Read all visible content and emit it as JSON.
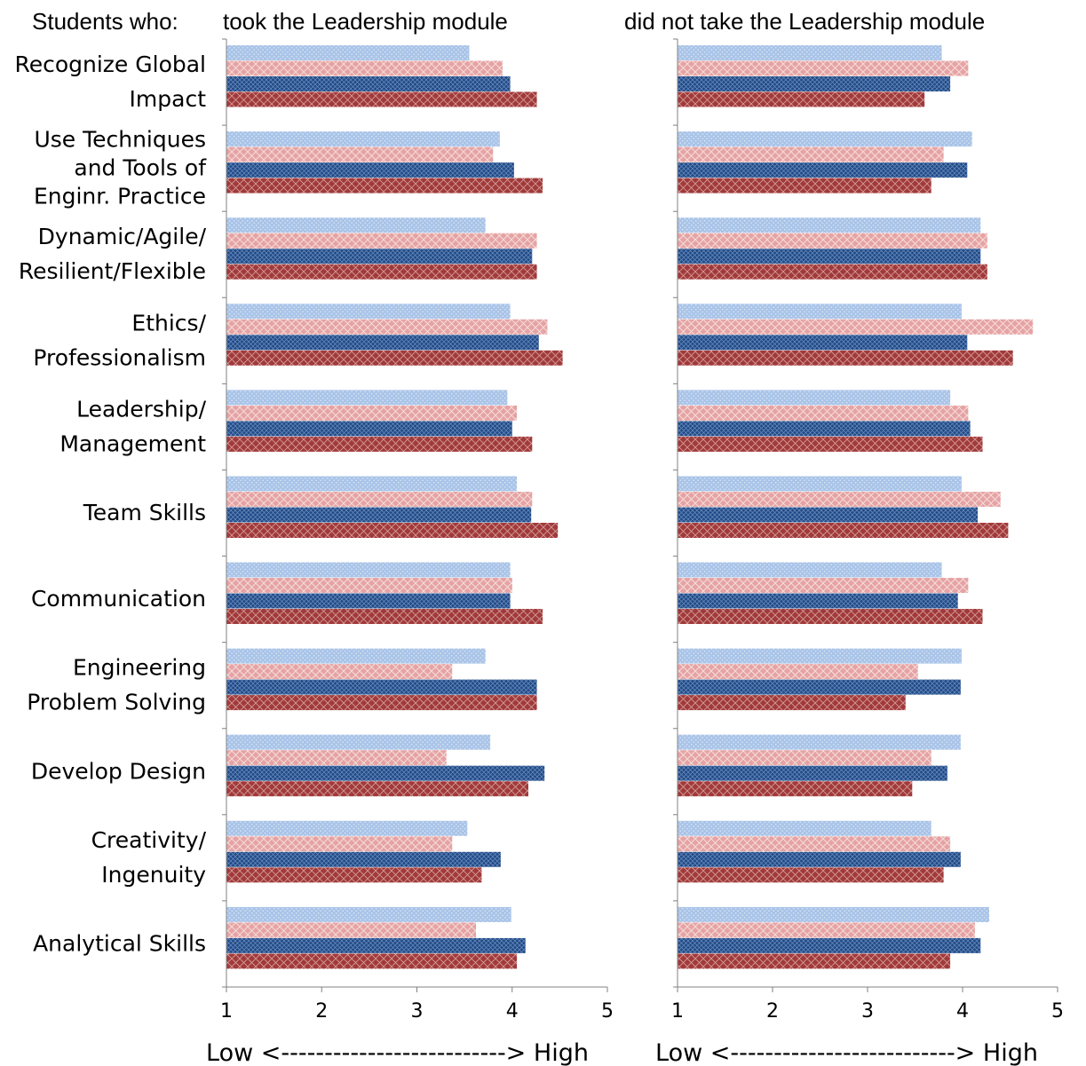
{
  "header": {
    "students_label": "Students who:",
    "left_title": "took the Leadership module",
    "right_title": "did not take the Leadership module"
  },
  "scale_label": "Low <--------------------------> High",
  "colors": {
    "light_blue": "#a9c4e8",
    "light_red": "#e6a3a3",
    "dark_blue": "#1f4a87",
    "dark_red": "#a13a3a",
    "axis": "#808080"
  },
  "chart_data": [
    {
      "type": "bar",
      "orientation": "horizontal",
      "title": "took the Leadership module",
      "categories": [
        [
          "Recognize Global",
          "Impact"
        ],
        [
          "Use Techniques",
          "and Tools of",
          "Enginr. Practice"
        ],
        [
          "Dynamic/Agile/",
          "Resilient/Flexible"
        ],
        [
          "Ethics/",
          "Professionalism"
        ],
        [
          "Leadership/",
          "Management"
        ],
        [
          "Team Skills"
        ],
        [
          "Communication"
        ],
        [
          "Engineering",
          "Problem Solving"
        ],
        [
          "Develop Design"
        ],
        [
          "Creativity/",
          "Ingenuity"
        ],
        [
          "Analytical Skills"
        ]
      ],
      "series": [
        {
          "color": "#a9c4e8",
          "values": [
            3.55,
            3.87,
            3.72,
            3.98,
            3.95,
            4.05,
            3.98,
            3.72,
            3.77,
            3.53,
            3.99
          ]
        },
        {
          "color": "#e6a3a3",
          "values": [
            3.9,
            3.8,
            4.26,
            4.37,
            4.05,
            4.21,
            4.0,
            3.37,
            3.31,
            3.37,
            3.62
          ]
        },
        {
          "color": "#1f4a87",
          "values": [
            3.98,
            4.02,
            4.21,
            4.28,
            4.0,
            4.2,
            3.98,
            4.26,
            4.34,
            3.88,
            4.14
          ]
        },
        {
          "color": "#a13a3a",
          "values": [
            4.26,
            4.32,
            4.26,
            4.53,
            4.21,
            4.48,
            4.32,
            4.26,
            4.17,
            3.68,
            4.05
          ]
        }
      ],
      "xlim": [
        1,
        5
      ],
      "xticks": [
        "1",
        "2",
        "3",
        "4",
        "5"
      ]
    },
    {
      "type": "bar",
      "orientation": "horizontal",
      "title": "did not take the Leadership module",
      "series": [
        {
          "color": "#a9c4e8",
          "values": [
            3.78,
            4.1,
            4.19,
            3.99,
            3.87,
            3.99,
            3.78,
            3.99,
            3.98,
            3.67,
            4.28
          ]
        },
        {
          "color": "#e6a3a3",
          "values": [
            4.06,
            3.8,
            4.26,
            4.74,
            4.06,
            4.4,
            4.06,
            3.53,
            3.67,
            3.87,
            4.13
          ]
        },
        {
          "color": "#1f4a87",
          "values": [
            3.87,
            4.05,
            4.19,
            4.05,
            4.08,
            4.16,
            3.95,
            3.98,
            3.84,
            3.98,
            4.19
          ]
        },
        {
          "color": "#a13a3a",
          "values": [
            3.6,
            3.67,
            4.26,
            4.53,
            4.21,
            4.48,
            4.21,
            3.4,
            3.47,
            3.8,
            3.87
          ]
        }
      ],
      "xlim": [
        1,
        5
      ],
      "xticks": [
        "1",
        "2",
        "3",
        "4",
        "5"
      ]
    }
  ]
}
